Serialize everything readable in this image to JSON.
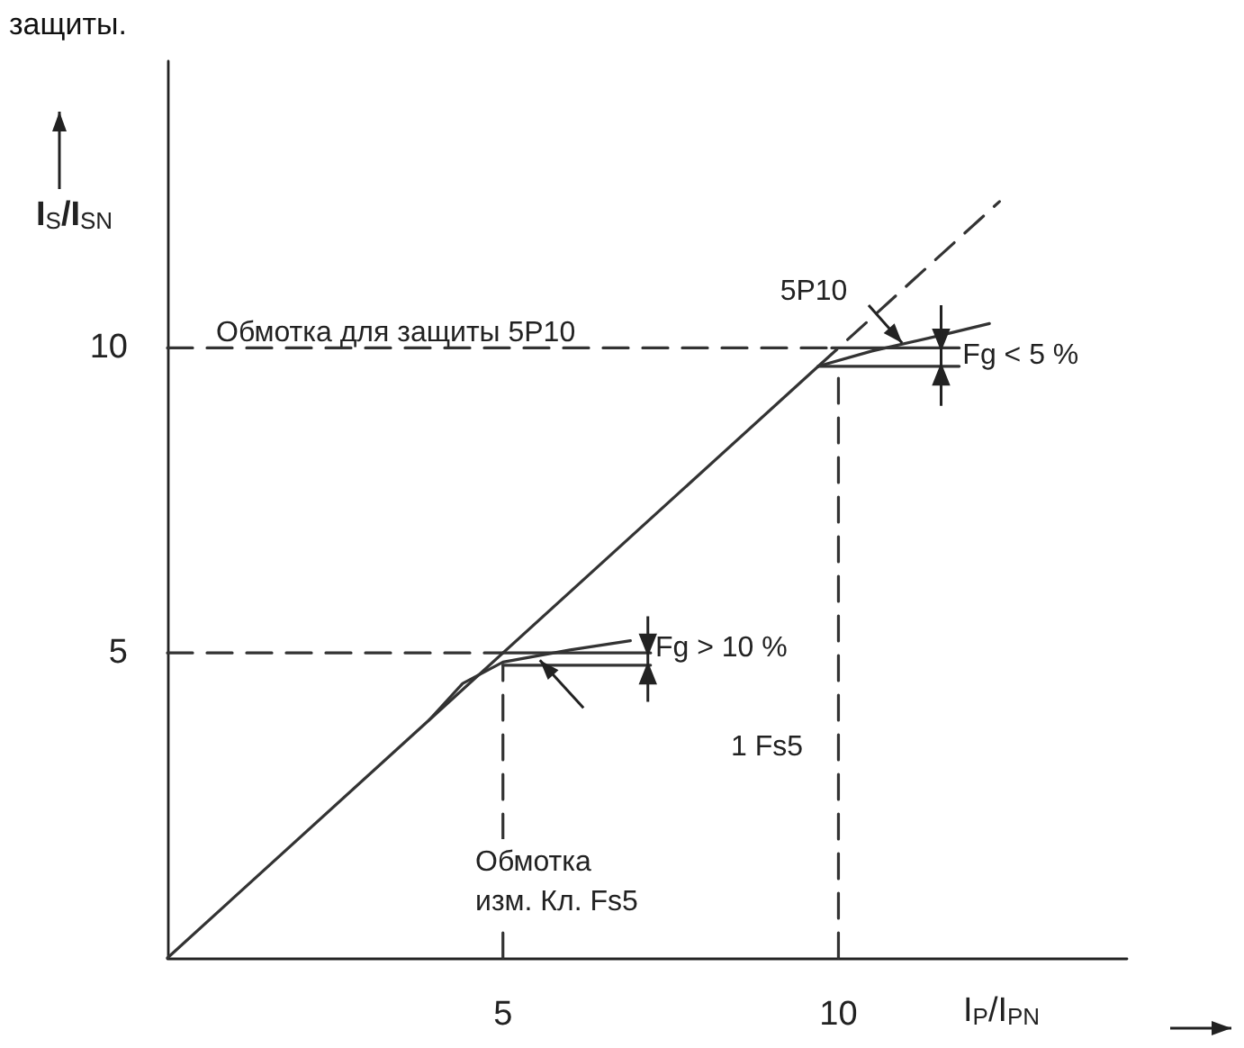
{
  "chart_data": {
    "type": "line",
    "title": "защиты.",
    "xlabel": "I$_{P}$/I$_{PN}$",
    "ylabel": "I$_{S}$/I$_{SN}$",
    "xlim": [
      0,
      14.3
    ],
    "ylim": [
      0,
      14.7
    ],
    "xticks": [
      5,
      10
    ],
    "yticks": [
      5,
      10
    ],
    "marker": "none",
    "series": [
      {
        "color": "#333333",
        "line_style": "solid",
        "x": [
          0,
          9.7
        ],
        "values": [
          0,
          9.7
        ]
      },
      {
        "color": "#333333",
        "line_style": "dashed",
        "x": [
          9.7,
          12.4
        ],
        "values": [
          9.7,
          12.4
        ]
      },
      {
        "color": "#333333",
        "line_style": "solid",
        "x": [
          3.9,
          4.4,
          5,
          6,
          6.9
        ],
        "values": [
          3.9,
          4.5,
          4.85,
          5.05,
          5.2
        ]
      },
      {
        "color": "#333333",
        "line_style": "solid",
        "x": [
          9.7,
          10.5,
          11.5,
          12.25
        ],
        "values": [
          9.7,
          9.95,
          10.2,
          10.4
        ]
      },
      {
        "color": "#333333",
        "line_style": "dashed",
        "x": [
          0,
          5
        ],
        "values": [
          5,
          5
        ]
      },
      {
        "color": "#333333",
        "line_style": "solid",
        "x": [
          5,
          7.2
        ],
        "values": [
          5,
          5
        ]
      },
      {
        "color": "#333333",
        "line_style": "solid",
        "x": [
          5,
          7.2
        ],
        "values": [
          4.8,
          4.8
        ]
      },
      {
        "color": "#333333",
        "line_style": "dashed",
        "x": [
          5,
          5
        ],
        "values": [
          0,
          4.8
        ]
      },
      {
        "color": "#333333",
        "line_style": "dashed",
        "x": [
          0,
          9.9
        ],
        "values": [
          10,
          10
        ]
      },
      {
        "color": "#333333",
        "line_style": "solid",
        "x": [
          9.9,
          11.8
        ],
        "values": [
          10,
          10
        ]
      },
      {
        "color": "#333333",
        "line_style": "solid",
        "x": [
          9.7,
          11.8
        ],
        "values": [
          9.7,
          9.7
        ]
      },
      {
        "color": "#333333",
        "line_style": "dashed",
        "x": [
          10,
          10
        ],
        "values": [
          0,
          9.7
        ]
      }
    ],
    "annotations": [
      "Обмотка для защиты 5P10",
      "5P10",
      {
        "text": "Fg < 5 %",
        "x": 11.85,
        "y": 9.88
      },
      {
        "text": "Fg > 10 %",
        "x": 7.27,
        "y": 5.07
      },
      "1 Fs5",
      "Обмотка\nизм. Кл. Fs5"
    ]
  }
}
